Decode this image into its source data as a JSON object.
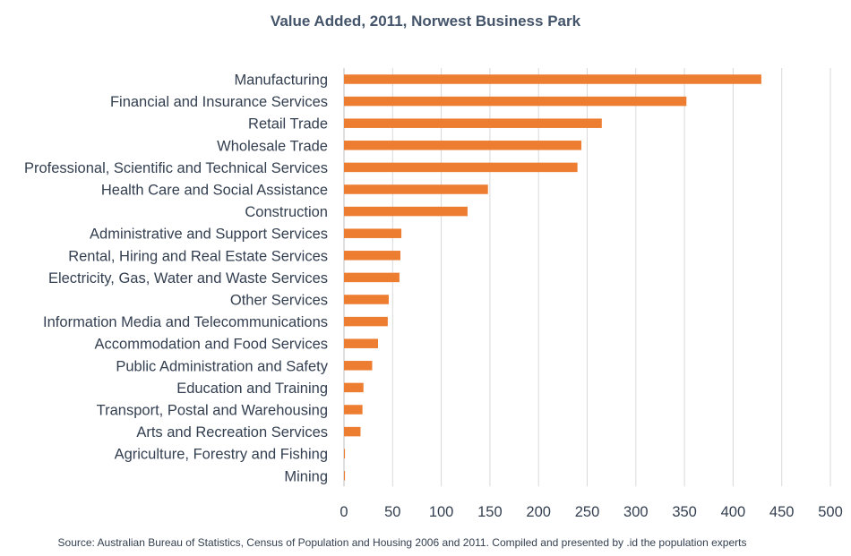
{
  "chart_data": {
    "type": "bar",
    "orientation": "horizontal",
    "title": "Value Added, 2011, Norwest Business Park",
    "xlabel": "",
    "ylabel": "",
    "xlim": [
      0,
      500
    ],
    "x_ticks": [
      0,
      50,
      100,
      150,
      200,
      250,
      300,
      350,
      400,
      450,
      500
    ],
    "grid": true,
    "legend": "none",
    "bar_color": "#ed7d31",
    "categories": [
      "Manufacturing",
      "Financial and Insurance Services",
      "Retail Trade",
      "Wholesale Trade",
      "Professional, Scientific and Technical Services",
      "Health Care and Social Assistance",
      "Construction",
      "Administrative and Support Services",
      "Rental, Hiring and Real Estate Services",
      "Electricity, Gas, Water and Waste Services",
      "Other Services",
      "Information Media and Telecommunications",
      "Accommodation and Food Services",
      "Public Administration and Safety",
      "Education and Training",
      "Transport, Postal and Warehousing",
      "Arts and Recreation Services",
      "Agriculture, Forestry and Fishing",
      "Mining"
    ],
    "values": [
      429,
      352,
      265,
      244,
      240,
      148,
      127,
      59,
      58,
      57,
      46,
      45,
      35,
      29,
      20,
      19,
      17,
      1,
      1
    ],
    "source": "Source: Australian Bureau of Statistics, Census of Population and Housing 2006 and 2011. Compiled and presented by .id the population experts"
  }
}
